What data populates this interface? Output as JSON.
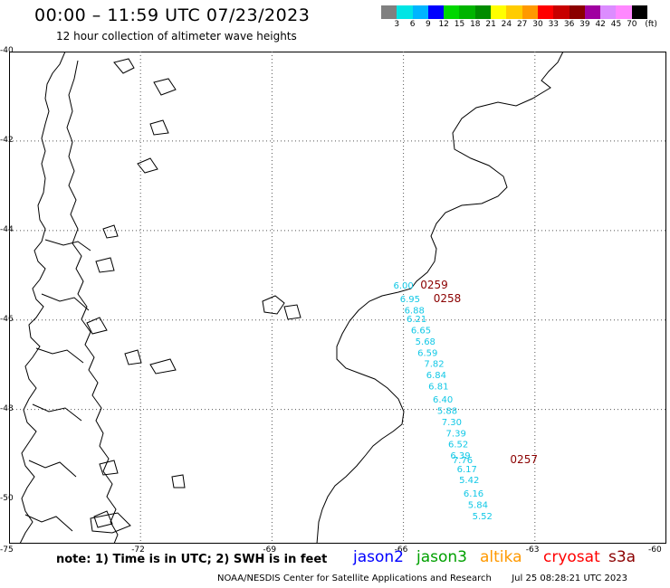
{
  "header": {
    "title": "00:00 – 11:59 UTC 07/23/2023",
    "subtitle": "12 hour collection of altimeter wave heights"
  },
  "colorbar": {
    "colors": [
      "#808080",
      "#00e5e5",
      "#00b5ff",
      "#0000ff",
      "#00d700",
      "#00b400",
      "#008c00",
      "#ffff00",
      "#ffcc00",
      "#ff9900",
      "#ff0000",
      "#c80000",
      "#8b0000",
      "#a000a0",
      "#dc8cff",
      "#ff88ff",
      "#000000"
    ],
    "labels": [
      "3",
      "6",
      "9",
      "12",
      "15",
      "18",
      "21",
      "24",
      "27",
      "30",
      "33",
      "36",
      "39",
      "42",
      "45",
      "70",
      "(ft)"
    ]
  },
  "map": {
    "lat_labels": [
      "-40",
      "-42",
      "-44",
      "-46",
      "-48",
      "-50"
    ],
    "lon_labels": [
      "-75",
      "-72",
      "-69",
      "-66",
      "-63",
      "-60"
    ],
    "coastline_color": "#000000",
    "grid_color": "#555555"
  },
  "observations": [
    {
      "value": "6.00",
      "lon": -66.0,
      "lat": -45.3
    },
    {
      "value": "6.95",
      "lon": -65.85,
      "lat": -45.6
    },
    {
      "value": "6.88",
      "lon": -65.75,
      "lat": -45.85
    },
    {
      "value": "6.21",
      "lon": -65.7,
      "lat": -46.05
    },
    {
      "value": "6.65",
      "lon": -65.6,
      "lat": -46.3
    },
    {
      "value": "5.68",
      "lon": -65.5,
      "lat": -46.55
    },
    {
      "value": "6.59",
      "lon": -65.45,
      "lat": -46.8
    },
    {
      "value": "7.82",
      "lon": -65.3,
      "lat": -47.05
    },
    {
      "value": "6.84",
      "lon": -65.25,
      "lat": -47.3
    },
    {
      "value": "6.81",
      "lon": -65.2,
      "lat": -47.55
    },
    {
      "value": "6.40",
      "lon": -65.1,
      "lat": -47.85
    },
    {
      "value": "5.88",
      "lon": -65.0,
      "lat": -48.1
    },
    {
      "value": "7.30",
      "lon": -64.9,
      "lat": -48.35
    },
    {
      "value": "7.39",
      "lon": -64.8,
      "lat": -48.6
    },
    {
      "value": "6.52",
      "lon": -64.75,
      "lat": -48.85
    },
    {
      "value": "6.39",
      "lon": -64.7,
      "lat": -49.1
    },
    {
      "value": "7.76",
      "lon": -64.65,
      "lat": -49.2
    },
    {
      "value": "6.17",
      "lon": -64.55,
      "lat": -49.4
    },
    {
      "value": "5.42",
      "lon": -64.5,
      "lat": -49.65
    },
    {
      "value": "6.16",
      "lon": -64.4,
      "lat": -49.95
    },
    {
      "value": "5.84",
      "lon": -64.3,
      "lat": -50.2
    },
    {
      "value": "5.52",
      "lon": -64.2,
      "lat": -50.45
    }
  ],
  "passes": [
    {
      "label": "0259",
      "lon": -65.3,
      "lat": -45.3
    },
    {
      "label": "0258",
      "lon": -65.0,
      "lat": -45.6
    },
    {
      "label": "0257",
      "lon": -63.25,
      "lat": -49.2
    }
  ],
  "note": "note: 1) Time is in UTC; 2) SWH is in feet",
  "satellites": [
    {
      "name": "jason2",
      "color": "#0000ff"
    },
    {
      "name": "jason3",
      "color": "#00a000"
    },
    {
      "name": "altika",
      "color": "#ff9900"
    },
    {
      "name": "cryosat",
      "color": "#ff0000"
    },
    {
      "name": "s3a",
      "color": "#8b0000"
    }
  ],
  "footer": {
    "credit": "NOAA/NESDIS Center for Satellite Applications and Research",
    "generated": "Jul 25 08:28:21 UTC 2023"
  }
}
